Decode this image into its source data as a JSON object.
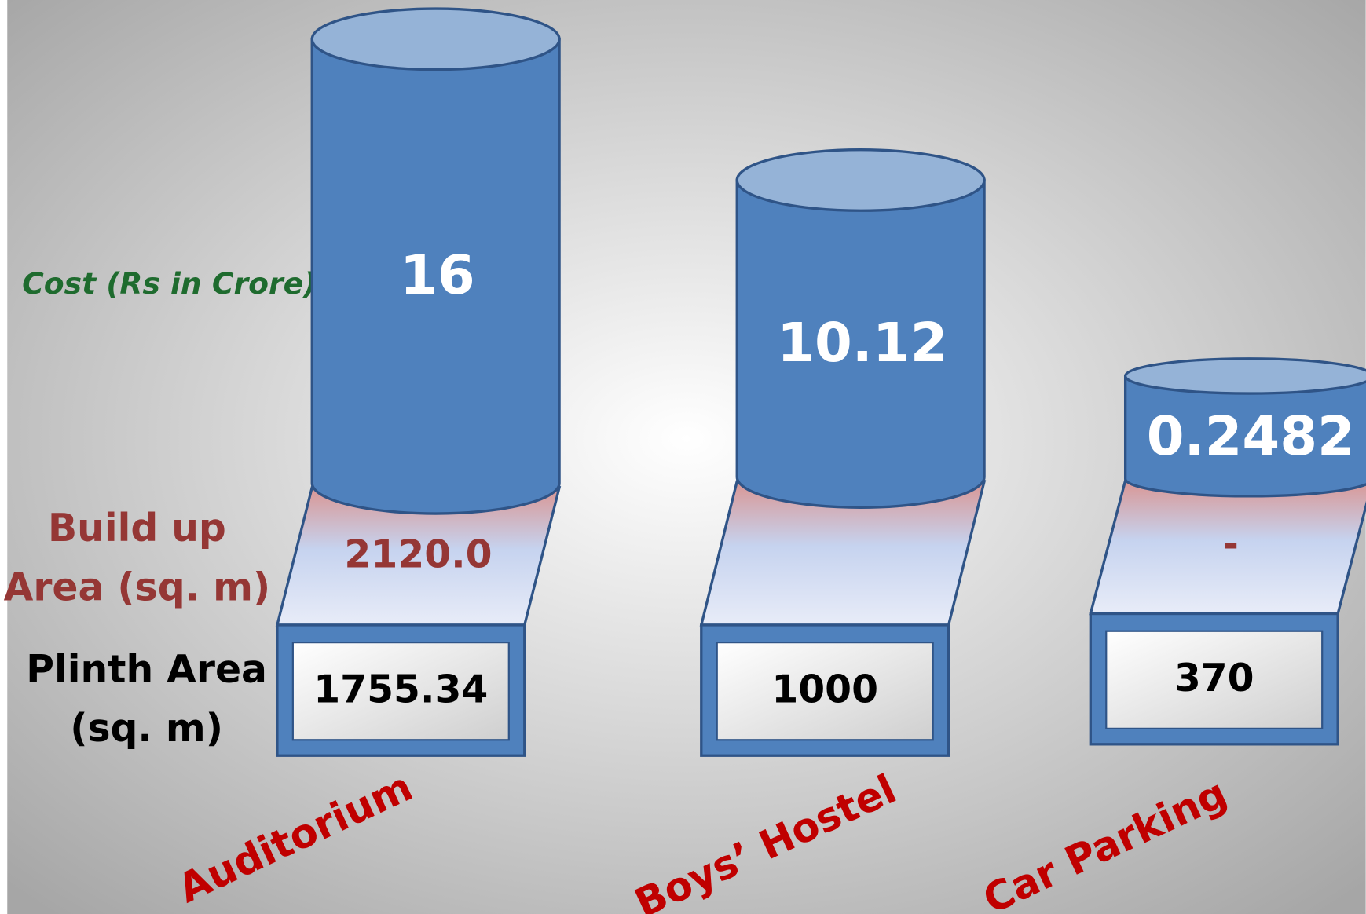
{
  "labels": {
    "cost": "Cost (Rs in Crore)",
    "build_up": [
      "Build up",
      "Area (sq. m)"
    ],
    "plinth": [
      "Plinth Area",
      "(sq. m)"
    ]
  },
  "items": [
    {
      "name": "Auditorium",
      "cost": "16",
      "build_up": "2120.0",
      "plinth": "1755.34"
    },
    {
      "name": "Boys’ Hostel",
      "cost": "10.12",
      "build_up": "",
      "plinth": "1000"
    },
    {
      "name": "Car Parking",
      "cost": "0.2482",
      "build_up": "-",
      "plinth": "370"
    }
  ]
}
